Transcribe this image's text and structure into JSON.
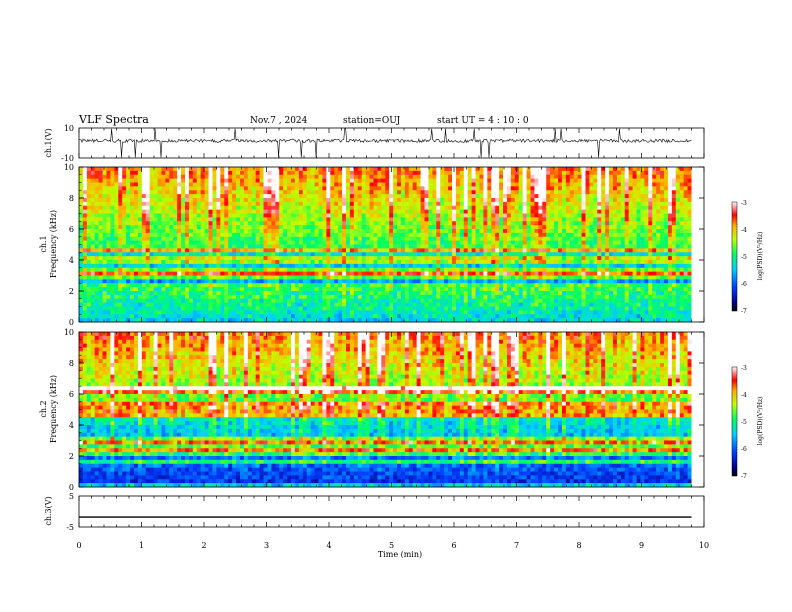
{
  "header": {
    "title": "VLF Spectra",
    "date": "Nov.7 , 2024",
    "station": "station=OUJ",
    "start": "start UT = 4 : 10 : 0"
  },
  "chart_data": [
    {
      "type": "line",
      "name": "ch1-waveform",
      "ylabel": "ch.1(V)",
      "yticks": [
        "10",
        "-10"
      ],
      "ylim": [
        -10,
        10
      ],
      "xlim": [
        0,
        10
      ],
      "color": "#000000"
    },
    {
      "type": "heatmap",
      "name": "ch1-spectrogram",
      "ylabel_ch": "ch.1",
      "ylabel": "Frequency (kHz)",
      "yticks": [
        "0",
        "2",
        "4",
        "6",
        "8",
        "10"
      ],
      "ylim": [
        0,
        10
      ],
      "xlim": [
        0,
        9.8
      ],
      "colorbar": {
        "label": "log(PSD)(V²/Hz)",
        "ticks": [
          "-3",
          "-4",
          "-5",
          "-6",
          "-7"
        ],
        "range": [
          -7,
          -3
        ]
      },
      "bands_kHz": [
        0.4,
        0.8,
        1.2,
        1.6,
        2.0,
        2.4,
        3.0,
        3.2,
        4.0,
        4.6
      ],
      "note_segments_min": [
        0,
        0.6,
        2.4,
        3.2,
        5.6,
        7.6,
        9.8
      ]
    },
    {
      "type": "heatmap",
      "name": "ch2-spectrogram",
      "ylabel_ch": "ch.2",
      "ylabel": "Frequency (kHz)",
      "yticks": [
        "0",
        "2",
        "4",
        "6",
        "8",
        "10"
      ],
      "ylim": [
        0,
        10
      ],
      "xlim": [
        0,
        9.8
      ],
      "colorbar": {
        "label": "log(PSD)(V²/Hz)",
        "ticks": [
          "-3",
          "-4",
          "-5",
          "-6",
          "-7"
        ],
        "range": [
          -7,
          -3
        ]
      },
      "bands_kHz": [
        1.6,
        2.2,
        2.4,
        2.8,
        3.0,
        4.6,
        5.0,
        5.4,
        6.2,
        6.4
      ],
      "note_segments_min": [
        0,
        0.6,
        2.4,
        5.6,
        9.8
      ]
    },
    {
      "type": "line",
      "name": "ch3-waveform",
      "ylabel": "ch.3(V)",
      "yticks": [
        "5",
        "-5"
      ],
      "ylim": [
        -5,
        5
      ],
      "values": [
        [
          0,
          -1.8
        ],
        [
          9.8,
          -1.8
        ]
      ],
      "color": "#000000"
    }
  ],
  "xaxis": {
    "label": "Time (min)",
    "ticks": [
      "0",
      "1",
      "2",
      "3",
      "4",
      "5",
      "6",
      "7",
      "8",
      "9",
      "10"
    ],
    "xlim": [
      0,
      10
    ]
  }
}
